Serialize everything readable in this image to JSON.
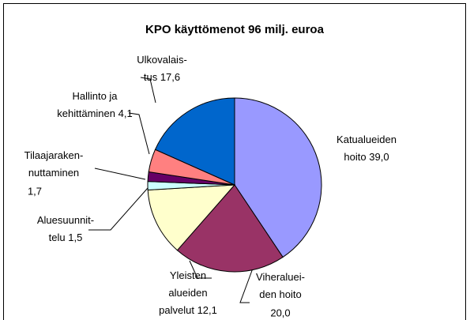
{
  "chart_data": {
    "type": "pie",
    "title": "KPO käyttömenot 96 milj. euroa",
    "categories": [
      [
        "Katualueiden",
        "hoito"
      ],
      [
        "Viheraluei-",
        "den hoito"
      ],
      [
        "Yleisten",
        "alueiden",
        "palvelut"
      ],
      [
        "Aluesuunnit-",
        "telu"
      ],
      [
        "Tilaajaraken-",
        "nuttaminen"
      ],
      [
        "Hallinto ja",
        "kehittäminen"
      ],
      [
        "Ulkovalais-",
        "tus"
      ]
    ],
    "values": [
      39.0,
      20.0,
      12.1,
      1.5,
      1.7,
      4.1,
      17.6
    ],
    "value_labels": [
      "39,0",
      "20,0",
      "12,1",
      "1,5",
      "1,7",
      "4,1",
      "17,6"
    ],
    "colors": [
      "#9999ff",
      "#993366",
      "#ffffcc",
      "#ccffff",
      "#660066",
      "#ff8080",
      "#0066cc"
    ]
  }
}
